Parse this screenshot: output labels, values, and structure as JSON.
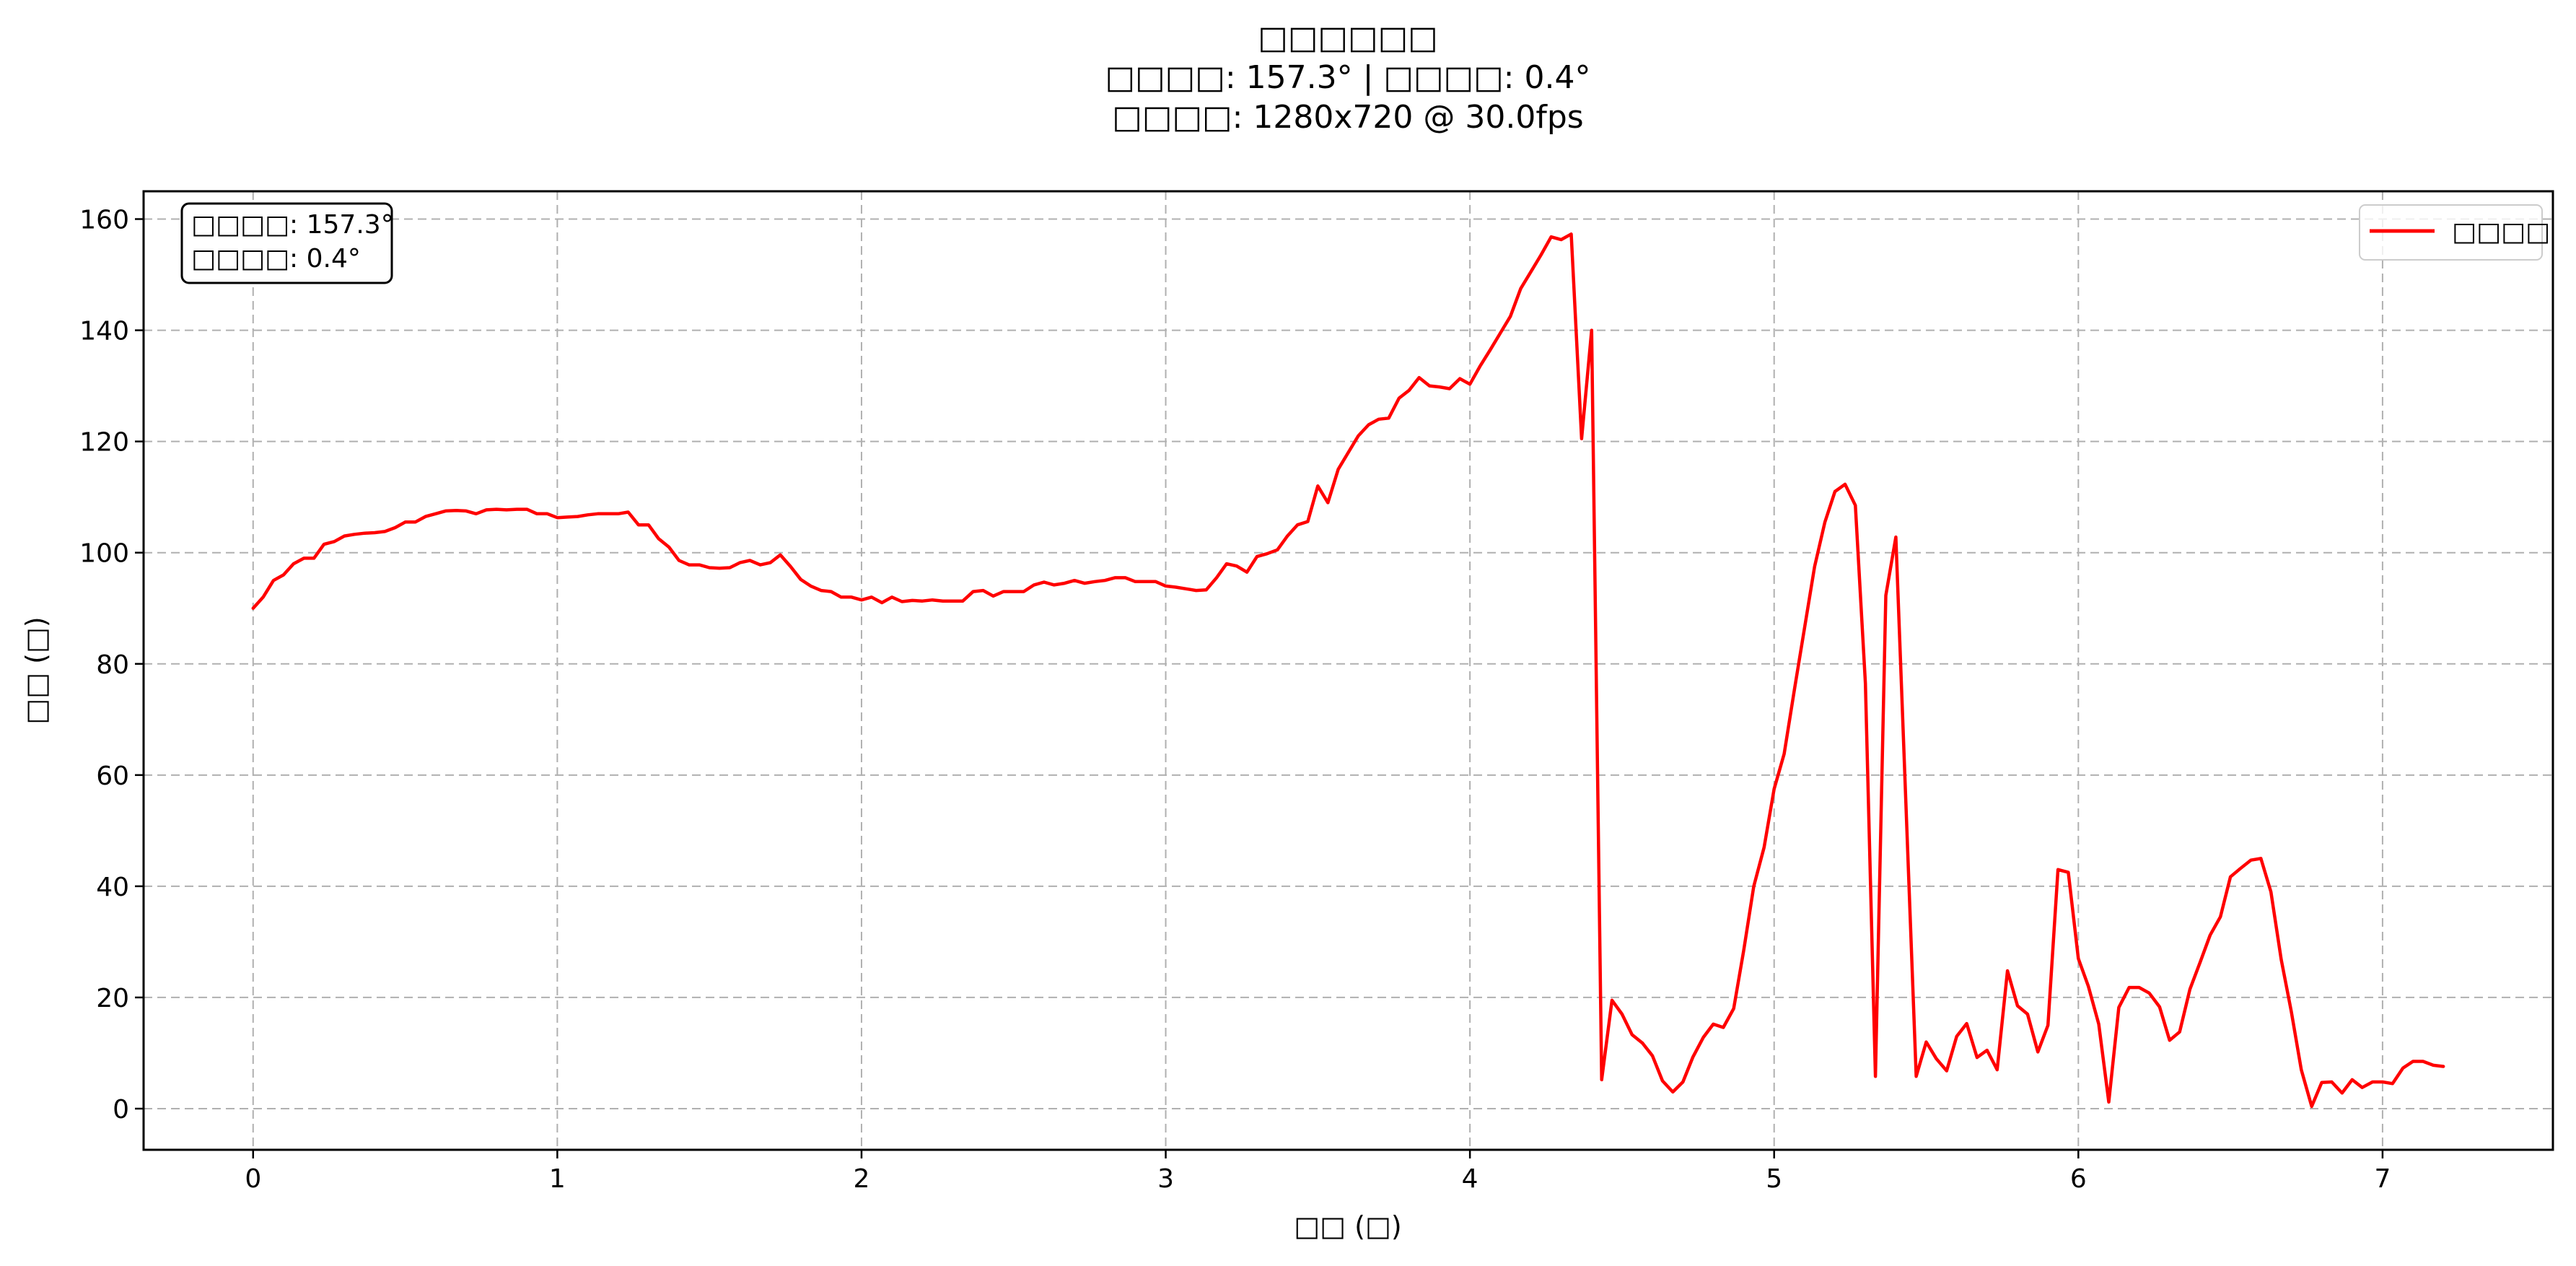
{
  "chart_data": {
    "type": "line",
    "title_lines": [
      "□□□□□□",
      "□□□□: 157.3° | □□□□: 0.4°",
      "□□□□: 1280x720 @ 30.0fps"
    ],
    "xlabel": "□□ (□)",
    "ylabel": "□□ (□)",
    "xlim": [
      -0.36,
      7.56
    ],
    "ylim": [
      -7.4,
      165
    ],
    "x_ticks": [
      0,
      1,
      2,
      3,
      4,
      5,
      6,
      7
    ],
    "y_ticks": [
      0,
      20,
      40,
      60,
      80,
      100,
      120,
      140,
      160
    ],
    "grid": true,
    "legend_position": "top-right",
    "info_box": [
      "□□□□: 157.3°",
      "□□□□: 0.4°"
    ],
    "colors": {
      "line": "#ff0000",
      "grid": "#b0b0b0",
      "box_edge": "#000000"
    },
    "series": [
      {
        "name": "□□□□",
        "x": [
          0,
          0.033,
          0.067,
          0.1,
          0.133,
          0.167,
          0.2,
          0.233,
          0.267,
          0.3,
          0.333,
          0.367,
          0.4,
          0.433,
          0.467,
          0.5,
          0.533,
          0.567,
          0.6,
          0.633,
          0.667,
          0.7,
          0.733,
          0.767,
          0.8,
          0.833,
          0.867,
          0.9,
          0.933,
          0.967,
          1.0,
          1.033,
          1.067,
          1.1,
          1.133,
          1.167,
          1.2,
          1.233,
          1.267,
          1.3,
          1.333,
          1.367,
          1.4,
          1.433,
          1.467,
          1.5,
          1.533,
          1.567,
          1.6,
          1.633,
          1.667,
          1.7,
          1.733,
          1.767,
          1.8,
          1.833,
          1.867,
          1.9,
          1.933,
          1.967,
          2.0,
          2.033,
          2.067,
          2.1,
          2.133,
          2.167,
          2.2,
          2.233,
          2.267,
          2.3,
          2.333,
          2.367,
          2.4,
          2.433,
          2.467,
          2.5,
          2.533,
          2.567,
          2.6,
          2.633,
          2.667,
          2.7,
          2.733,
          2.767,
          2.8,
          2.833,
          2.867,
          2.9,
          2.933,
          2.967,
          3.0,
          3.033,
          3.067,
          3.1,
          3.133,
          3.167,
          3.2,
          3.233,
          3.267,
          3.3,
          3.333,
          3.367,
          3.4,
          3.433,
          3.467,
          3.5,
          3.533,
          3.567,
          3.6,
          3.633,
          3.667,
          3.7,
          3.733,
          3.767,
          3.8,
          3.833,
          3.867,
          3.9,
          3.933,
          3.967,
          4.0,
          4.033,
          4.067,
          4.1,
          4.133,
          4.167,
          4.2,
          4.233,
          4.267,
          4.3,
          4.333,
          4.367,
          4.4,
          4.433,
          4.467,
          4.5,
          4.533,
          4.567,
          4.6,
          4.633,
          4.667,
          4.7,
          4.733,
          4.767,
          4.8,
          4.833,
          4.867,
          4.9,
          4.933,
          4.967,
          5.0,
          5.033,
          5.067,
          5.1,
          5.133,
          5.167,
          5.2,
          5.233,
          5.267,
          5.3,
          5.333,
          5.367,
          5.4,
          5.433,
          5.467,
          5.5,
          5.533,
          5.567,
          5.6,
          5.633,
          5.667,
          5.7,
          5.733,
          5.767,
          5.8,
          5.833,
          5.867,
          5.9,
          5.933,
          5.967,
          6.0,
          6.033,
          6.067,
          6.1,
          6.133,
          6.167,
          6.2,
          6.233,
          6.267,
          6.3,
          6.333,
          6.367,
          6.4,
          6.433,
          6.467,
          6.5,
          6.533,
          6.567,
          6.6,
          6.633,
          6.667,
          6.7,
          6.733,
          6.767,
          6.8,
          6.833,
          6.867,
          6.9,
          6.933,
          6.967,
          7.0,
          7.033,
          7.067,
          7.1,
          7.133,
          7.167,
          7.2
        ],
        "y": [
          90,
          92,
          95,
          96,
          98,
          99,
          99,
          101.5,
          102,
          103,
          103.3,
          103.5,
          103.6,
          103.8,
          104.5,
          105.5,
          105.5,
          106.5,
          107,
          107.5,
          107.6,
          107.5,
          107,
          107.7,
          107.8,
          107.7,
          107.8,
          107.8,
          107,
          107,
          106.3,
          106.4,
          106.5,
          106.8,
          107,
          107,
          107,
          107.3,
          105,
          105,
          102.5,
          101,
          98.6,
          97.8,
          97.8,
          97.3,
          97.2,
          97.3,
          98.2,
          98.6,
          97.8,
          98.2,
          99.6,
          97.5,
          95.2,
          94,
          93.2,
          93,
          92,
          92,
          91.5,
          92,
          91,
          92,
          91.2,
          91.4,
          91.3,
          91.5,
          91.3,
          91.3,
          91.3,
          93,
          93.2,
          92.2,
          93,
          93,
          93,
          94.2,
          94.7,
          94.2,
          94.5,
          95,
          94.5,
          94.8,
          95,
          95.5,
          95.5,
          94.8,
          94.8,
          94.8,
          94,
          93.8,
          93.5,
          93.2,
          93.3,
          95.5,
          98,
          97.6,
          96.5,
          99.3,
          99.8,
          100.5,
          103,
          105,
          105.6,
          112,
          109,
          115,
          118,
          121,
          123,
          124,
          124.2,
          127.8,
          129.2,
          131.5,
          130,
          129.8,
          129.5,
          131.3,
          130.3,
          133.5,
          136.5,
          139.5,
          142.5,
          147.5,
          150.5,
          153.5,
          156.8,
          156.3,
          157.3,
          120.5,
          140,
          5.2,
          19.5,
          17,
          13.3,
          11.8,
          9.5,
          5,
          3,
          4.8,
          9.3,
          12.8,
          15.2,
          14.6,
          18,
          28.5,
          40,
          47,
          57.5,
          63.8,
          75.5,
          86.5,
          97.5,
          105.5,
          111,
          112.3,
          108.5,
          76.5,
          5.8,
          92.3,
          102.8,
          55,
          5.8,
          12,
          9,
          6.8,
          13,
          15.3,
          9.2,
          10.5,
          7,
          24.8,
          18.5,
          17,
          10.2,
          15,
          43,
          42.5,
          27,
          22,
          15.2,
          1.2,
          18.2,
          21.8,
          21.8,
          20.8,
          18.3,
          12.3,
          13.8,
          21.5,
          26.3,
          31.2,
          34.5,
          41.7,
          43.2,
          44.7,
          45,
          39,
          26.8,
          17.5,
          7,
          0.4,
          4.7,
          4.8,
          2.8,
          5.2,
          3.8,
          4.8,
          4.8,
          4.5,
          7.3,
          8.5,
          8.5,
          7.8,
          7.6
        ]
      }
    ]
  }
}
